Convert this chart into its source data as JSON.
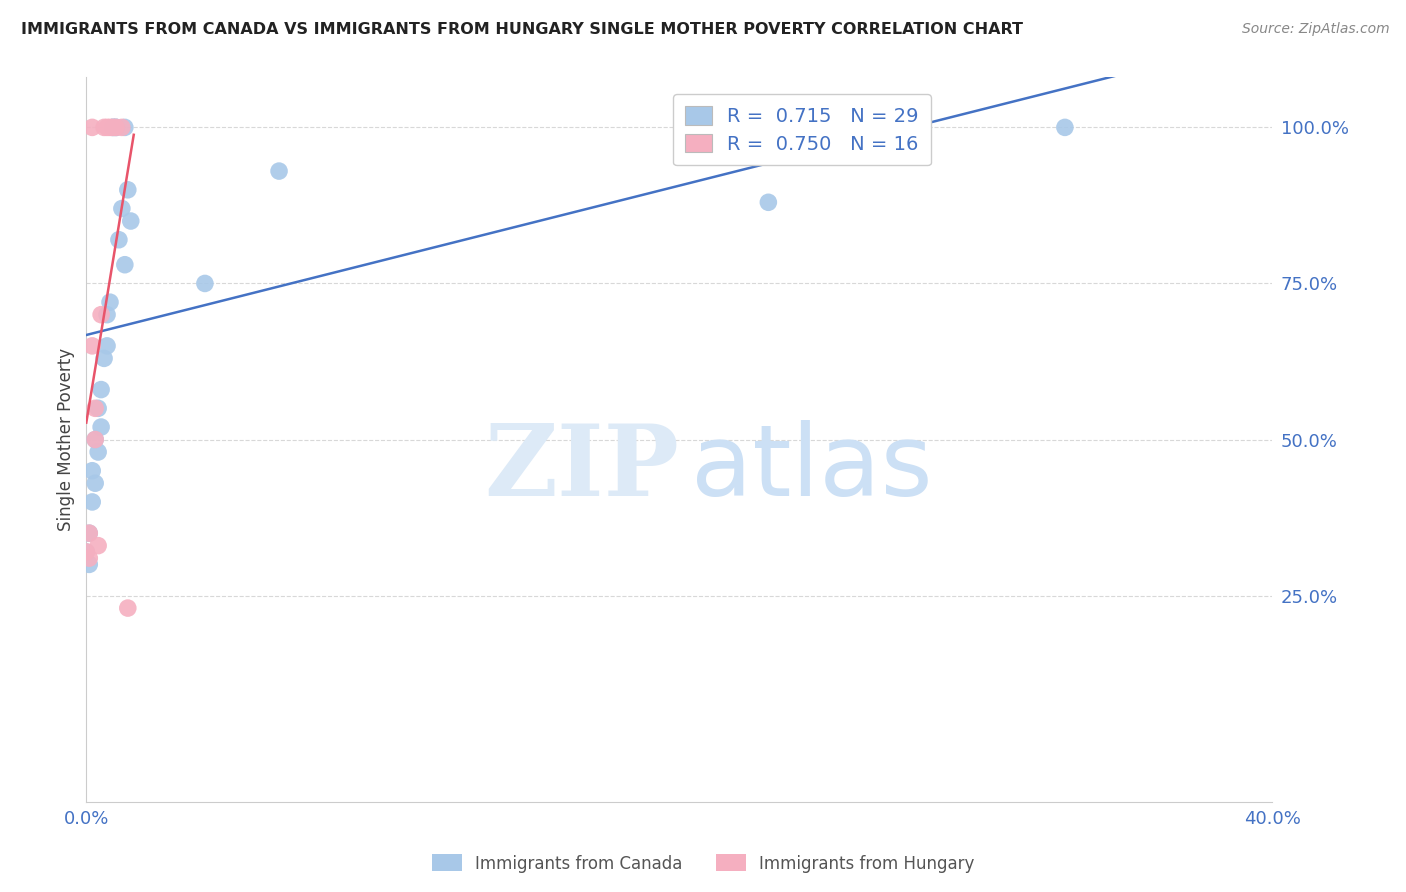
{
  "title": "IMMIGRANTS FROM CANADA VS IMMIGRANTS FROM HUNGARY SINGLE MOTHER POVERTY CORRELATION CHART",
  "source": "Source: ZipAtlas.com",
  "ylabel": "Single Mother Poverty",
  "legend_blue_r": "0.715",
  "legend_blue_n": "29",
  "legend_pink_r": "0.750",
  "legend_pink_n": "16",
  "legend_label_blue": "Immigrants from Canada",
  "legend_label_pink": "Immigrants from Hungary",
  "blue_x": [
    0.0,
    0.001,
    0.001,
    0.002,
    0.002,
    0.003,
    0.003,
    0.004,
    0.004,
    0.005,
    0.005,
    0.006,
    0.007,
    0.007,
    0.008,
    0.009,
    0.009,
    0.01,
    0.01,
    0.011,
    0.012,
    0.013,
    0.013,
    0.014,
    0.015,
    0.04,
    0.065,
    0.23,
    0.33
  ],
  "blue_y": [
    0.32,
    0.3,
    0.35,
    0.4,
    0.45,
    0.43,
    0.5,
    0.48,
    0.55,
    0.52,
    0.58,
    0.63,
    0.65,
    0.7,
    0.72,
    1.0,
    1.0,
    1.0,
    1.0,
    0.82,
    0.87,
    1.0,
    0.78,
    0.9,
    0.85,
    0.75,
    0.93,
    0.88,
    1.0
  ],
  "pink_x": [
    0.0,
    0.001,
    0.001,
    0.002,
    0.002,
    0.003,
    0.003,
    0.004,
    0.005,
    0.006,
    0.007,
    0.008,
    0.009,
    0.01,
    0.012,
    0.014
  ],
  "pink_y": [
    0.32,
    0.31,
    0.35,
    0.65,
    1.0,
    0.5,
    0.55,
    0.33,
    0.7,
    1.0,
    1.0,
    1.0,
    1.0,
    1.0,
    1.0,
    0.23
  ],
  "blue_color": "#a8c8e8",
  "pink_color": "#f5afc0",
  "blue_line_color": "#4472c4",
  "pink_line_color": "#e8546a",
  "xmin": 0.0,
  "xmax": 0.4,
  "ymin": -0.08,
  "ymax": 1.08,
  "ytick_values": [
    0.25,
    0.5,
    0.75,
    1.0
  ],
  "ytick_labels": [
    "25.0%",
    "50.0%",
    "75.0%",
    "100.0%"
  ],
  "xtick_positions": [
    0.0,
    0.05,
    0.1,
    0.15,
    0.2,
    0.25,
    0.3,
    0.35,
    0.4
  ],
  "xtick_labels_show": {
    "0.0": "0.0%",
    "0.4": "40.0%"
  },
  "grid_color": "#d8d8d8",
  "background_color": "#ffffff",
  "watermark_zip": "ZIP",
  "watermark_atlas": "atlas"
}
